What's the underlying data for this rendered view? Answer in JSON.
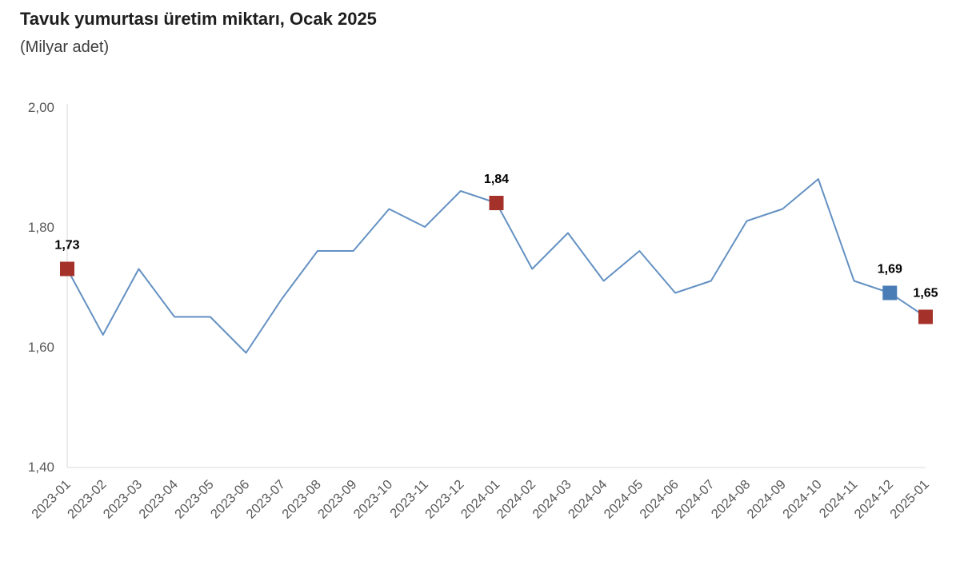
{
  "title": "Tavuk yumurtası üretim miktarı, Ocak 2025",
  "subtitle": "(Milyar adet)",
  "chart_data": {
    "type": "line",
    "title": "Tavuk yumurtası üretim miktarı, Ocak 2025",
    "subtitle": "(Milyar adet)",
    "xlabel": "",
    "ylabel": "",
    "grid": false,
    "legend": false,
    "ylim": [
      1.4,
      2.0
    ],
    "categories": [
      "2023-01",
      "2023-02",
      "2023-03",
      "2023-04",
      "2023-05",
      "2023-06",
      "2023-07",
      "2023-08",
      "2023-09",
      "2023-10",
      "2023-11",
      "2023-12",
      "2024-01",
      "2024-02",
      "2024-03",
      "2024-04",
      "2024-05",
      "2024-06",
      "2024-07",
      "2024-08",
      "2024-09",
      "2024-10",
      "2024-11",
      "2024-12",
      "2025-01"
    ],
    "values": [
      1.73,
      1.62,
      1.73,
      1.65,
      1.65,
      1.59,
      1.68,
      1.76,
      1.76,
      1.83,
      1.8,
      1.86,
      1.84,
      1.73,
      1.79,
      1.71,
      1.76,
      1.69,
      1.71,
      1.81,
      1.83,
      1.88,
      1.71,
      1.69,
      1.65
    ],
    "yticks": [
      {
        "value": 2.0,
        "label": "2,00"
      },
      {
        "value": 1.8,
        "label": "1,80"
      },
      {
        "value": 1.6,
        "label": "1,60"
      },
      {
        "value": 1.4,
        "label": "1,40"
      }
    ],
    "highlighted_points": [
      {
        "category": "2023-01",
        "value": 1.73,
        "label": "1,73",
        "color": "#a5322a"
      },
      {
        "category": "2024-01",
        "value": 1.84,
        "label": "1,84",
        "color": "#a5322a"
      },
      {
        "category": "2024-12",
        "value": 1.69,
        "label": "1,69",
        "color": "#4a7db6"
      },
      {
        "category": "2025-01",
        "value": 1.65,
        "label": "1,65",
        "color": "#a5322a"
      }
    ],
    "colors": {
      "line": "#6491c2",
      "marker_red": "#a5322a",
      "marker_blue": "#4a7db6",
      "axis_line": "#d9d9d9",
      "tick_label": "#595959",
      "point_label": "#000000"
    }
  }
}
